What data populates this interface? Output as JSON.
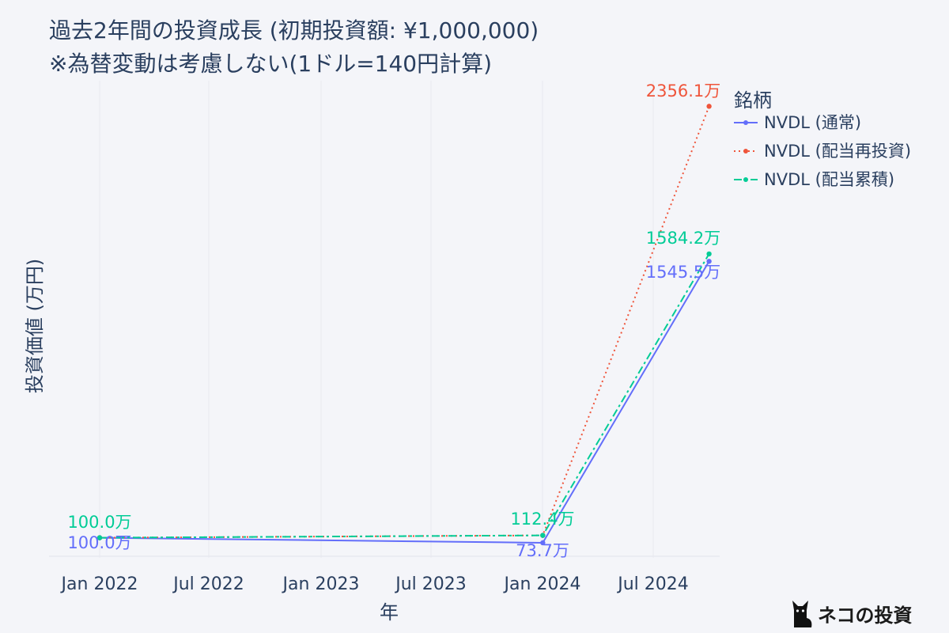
{
  "chart_data": {
    "type": "line",
    "title_line1": "過去2年間の投資成長 (初期投資額: ¥1,000,000)",
    "title_line2": "※為替変動は考慮しない(1ドル=140円計算)",
    "xlabel": "年",
    "ylabel": "投資価値 (万円)",
    "x_ticks": [
      "Jan 2022",
      "Jul 2022",
      "Jan 2023",
      "Jul 2023",
      "Jan 2024",
      "Jul 2024"
    ],
    "x": [
      "2022-01-01",
      "2024-01-01",
      "2024-10-01"
    ],
    "legend_title": "銘柄",
    "legend_position": "top-right",
    "grid": true,
    "series": [
      {
        "name": "NVDL (通常)",
        "values": [
          100.0,
          73.7,
          1545.5
        ],
        "labels": [
          "100.0万",
          "73.7万",
          "1545.5万"
        ],
        "color": "#636efa",
        "dash": "solid"
      },
      {
        "name": "NVDL (配当再投資)",
        "values": [
          100.0,
          112.4,
          2356.1
        ],
        "labels": [
          "",
          "",
          "2356.1万"
        ],
        "color": "#ef553b",
        "dash": "dot"
      },
      {
        "name": "NVDL (配当累積)",
        "values": [
          100.0,
          112.4,
          1584.2
        ],
        "labels": [
          "100.0万",
          "112.4万",
          "1584.2万"
        ],
        "color": "#00cc96",
        "dash": "dashdot"
      }
    ]
  },
  "brand": {
    "text": "ネコの投資",
    "icon": "cat-icon"
  }
}
